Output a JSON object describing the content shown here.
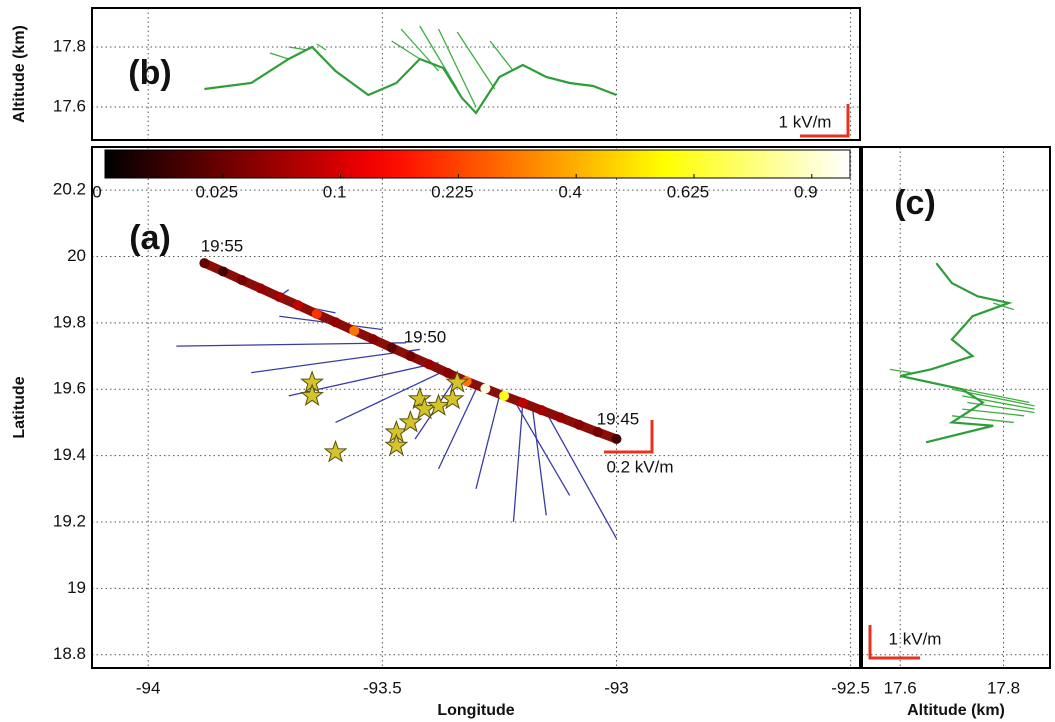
{
  "chart_data": [
    {
      "type": "map-track",
      "panel_label": "(a)",
      "xlabel": "Longitude",
      "ylabel": "Latitude",
      "xlim": [
        -94.12,
        -92.48
      ],
      "ylim": [
        18.76,
        20.33
      ],
      "xticks": [
        -94,
        -93.5,
        -93,
        -92.5
      ],
      "yticks": [
        18.8,
        19,
        19.2,
        19.4,
        19.6,
        19.8,
        20,
        20.2
      ],
      "xtick_labels": true,
      "ytick_labels": true,
      "grid": true,
      "colorbar": {
        "lim": [
          0,
          1
        ],
        "scale": "sqrt",
        "colormap": "hot",
        "ticks": [
          0,
          0.025,
          0.1,
          0.225,
          0.4,
          0.625,
          0.9
        ]
      },
      "track": {
        "x": [
          -93.88,
          -93.84,
          -93.8,
          -93.76,
          -93.72,
          -93.68,
          -93.64,
          -93.6,
          -93.56,
          -93.52,
          -93.48,
          -93.44,
          -93.4,
          -93.36,
          -93.32,
          -93.28,
          -93.24,
          -93.2,
          -93.16,
          -93.12,
          -93.08,
          -93.04,
          -93
        ],
        "y": [
          19.98,
          19.955,
          19.929,
          19.904,
          19.878,
          19.853,
          19.827,
          19.802,
          19.776,
          19.751,
          19.725,
          19.7,
          19.675,
          19.649,
          19.624,
          19.602,
          19.58,
          19.559,
          19.537,
          19.515,
          19.493,
          19.471,
          19.45
        ],
        "values": [
          0.02,
          0.01,
          0.03,
          0.05,
          0.06,
          0.08,
          0.2,
          0.05,
          0.3,
          0.04,
          0.02,
          0.03,
          0.05,
          0.04,
          0.3,
          0.95,
          0.6,
          0.08,
          0.06,
          0.05,
          0.04,
          0.03,
          0.01
        ]
      },
      "vectors": {
        "color": "#3b3ba8",
        "x": [
          -93.7,
          -93.5,
          -93.45,
          -93.42,
          -93.38,
          -93.36,
          -93.34,
          -93.3,
          -93.25,
          -93.2,
          -93.18,
          -93.15,
          -93.22,
          -93.6
        ],
        "y": [
          19.9,
          19.78,
          19.74,
          19.72,
          19.68,
          19.66,
          19.64,
          19.6,
          19.58,
          19.56,
          19.55,
          19.53,
          19.57,
          19.83
        ],
        "x2": [
          -93.72,
          -93.72,
          -93.94,
          -93.78,
          -93.7,
          -93.6,
          -93.43,
          -93.38,
          -93.3,
          -93.22,
          -93.15,
          -93,
          -93.1,
          -93.67
        ],
        "y2": [
          19.88,
          19.82,
          19.73,
          19.65,
          19.58,
          19.5,
          19.45,
          19.36,
          19.3,
          19.2,
          19.22,
          19.15,
          19.28,
          19.85
        ]
      },
      "stars": {
        "color": "#d4c32a",
        "x": [
          -93.65,
          -93.65,
          -93.6,
          -93.47,
          -93.47,
          -93.44,
          -93.42,
          -93.41,
          -93.38,
          -93.35,
          -93.34
        ],
        "y": [
          19.62,
          19.58,
          19.41,
          19.47,
          19.43,
          19.5,
          19.57,
          19.54,
          19.55,
          19.57,
          19.62
        ]
      },
      "annotations": [
        "19:55",
        "19:50",
        "19:45",
        "0.2 kV/m"
      ]
    },
    {
      "type": "line",
      "panel_label": "(b)",
      "ylabel": "Altitude (km)",
      "xlim": [
        -94.12,
        -92.48
      ],
      "ylim": [
        17.49,
        17.93
      ],
      "xticks": [
        -94,
        -93.5,
        -93,
        -92.5
      ],
      "yticks": [
        17.6,
        17.8
      ],
      "xtick_labels": false,
      "ytick_labels": true,
      "grid": true,
      "series": [
        {
          "color": "#2e9e3a",
          "x": [
            -93.88,
            -93.78,
            -93.7,
            -93.65,
            -93.6,
            -93.53,
            -93.47,
            -93.42,
            -93.37,
            -93.33,
            -93.3,
            -93.25,
            -93.2,
            -93.15,
            -93.1,
            -93.05,
            -93
          ],
          "y": [
            17.66,
            17.68,
            17.76,
            17.8,
            17.72,
            17.64,
            17.68,
            17.76,
            17.73,
            17.63,
            17.58,
            17.7,
            17.74,
            17.7,
            17.68,
            17.67,
            17.64
          ]
        }
      ],
      "vectors": {
        "color": "#3fae3f",
        "x": [
          -93.7,
          -93.66,
          -93.62,
          -93.42,
          -93.38,
          -93.34,
          -93.3,
          -93.26,
          -93.22
        ],
        "y": [
          17.76,
          17.79,
          17.79,
          17.76,
          17.72,
          17.66,
          17.6,
          17.66,
          17.72
        ],
        "x2": [
          -93.74,
          -93.7,
          -93.64,
          -93.48,
          -93.46,
          -93.42,
          -93.38,
          -93.34,
          -93.27
        ],
        "y2": [
          17.78,
          17.8,
          17.81,
          17.82,
          17.86,
          17.87,
          17.86,
          17.85,
          17.82
        ]
      },
      "annotations": [
        "1 kV/m"
      ]
    },
    {
      "type": "line",
      "panel_label": "(c)",
      "xlabel": "Altitude (km)",
      "xlim": [
        17.526,
        17.89
      ],
      "ylim": [
        18.76,
        20.33
      ],
      "xticks": [
        17.6,
        17.8
      ],
      "yticks": [
        18.8,
        19,
        19.2,
        19.4,
        19.6,
        19.8,
        20,
        20.2
      ],
      "xtick_labels": true,
      "ytick_labels": false,
      "grid": true,
      "series": [
        {
          "color": "#2e9e3a",
          "x": [
            17.67,
            17.7,
            17.75,
            17.81,
            17.74,
            17.7,
            17.74,
            17.66,
            17.6,
            17.72,
            17.76,
            17.72,
            17.7,
            17.78,
            17.65
          ],
          "y": [
            19.98,
            19.92,
            19.88,
            19.86,
            19.82,
            19.75,
            19.7,
            19.66,
            19.64,
            19.6,
            19.56,
            19.52,
            19.5,
            19.49,
            19.44
          ]
        }
      ],
      "vectors": {
        "color": "#3fae3f",
        "x": [
          17.66,
          17.7,
          17.72,
          17.73,
          17.72,
          17.7,
          17.62,
          17.78
        ],
        "y": [
          19.62,
          19.6,
          19.58,
          19.56,
          19.54,
          19.52,
          19.65,
          19.86
        ],
        "x2": [
          17.85,
          17.86,
          17.86,
          17.86,
          17.84,
          17.82,
          17.58,
          17.82
        ],
        "y2": [
          19.56,
          19.55,
          19.54,
          19.53,
          19.52,
          19.5,
          19.66,
          19.84
        ]
      },
      "annotations": [
        "1 kV/m"
      ]
    }
  ]
}
